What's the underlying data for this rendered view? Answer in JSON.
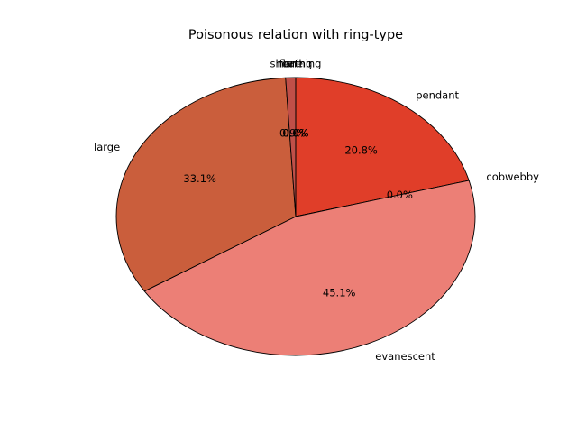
{
  "chart_data": {
    "type": "pie",
    "title": "Poisonous relation with ring-type",
    "start_angle_deg": 90,
    "counterclock": false,
    "edge_color": "#000000",
    "slices": [
      {
        "label": "pendant",
        "value": 20.8,
        "pct_label": "20.8%",
        "color": "#e03e29"
      },
      {
        "label": "cobwebby",
        "value": 0.0,
        "pct_label": "0.0%",
        "color": "#e15544"
      },
      {
        "label": "evanescent",
        "value": 45.1,
        "pct_label": "45.1%",
        "color": "#ec7f76"
      },
      {
        "label": "large",
        "value": 33.1,
        "pct_label": "33.1%",
        "color": "#ca5e3c"
      },
      {
        "label": "none",
        "value": 0.9,
        "pct_label": "0.9%",
        "color": "#c04f48"
      },
      {
        "label": "flaring",
        "value": 0.0,
        "pct_label": "0.0%",
        "color": "#b1443b"
      },
      {
        "label": "sheathing",
        "value": 0.0,
        "pct_label": "0.0%",
        "color": "#a33b33"
      }
    ]
  }
}
